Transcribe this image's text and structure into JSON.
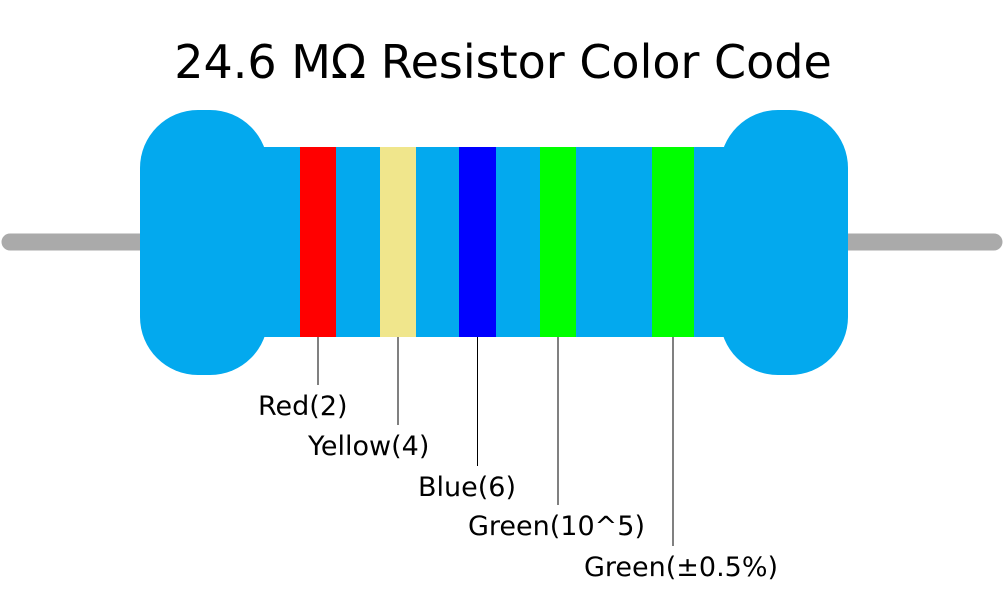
{
  "title": "24.6 MΩ Resistor Color Code",
  "bands": [
    {
      "label": "Red(2)",
      "color": "#ff0000"
    },
    {
      "label": "Yellow(4)",
      "color": "#f0e68c"
    },
    {
      "label": "Blue(6)",
      "color": "#0000ff"
    },
    {
      "label": "Green(10^5)",
      "color": "#00ff00"
    },
    {
      "label": "Green(±0.5%)",
      "color": "#00ff00"
    }
  ]
}
